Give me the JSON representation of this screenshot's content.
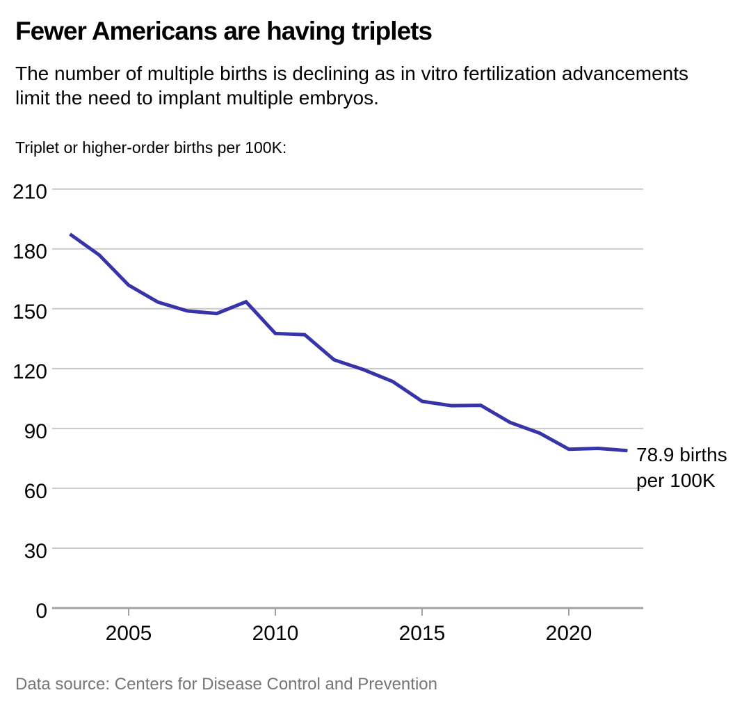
{
  "header": {
    "title": "Fewer Americans are having triplets",
    "subtitle": "The number of multiple births is declining as in vitro fertilization advancements limit the need to implant multiple embryos.",
    "axis_note": "Triplet or higher-order births per 100K:"
  },
  "chart_data": {
    "type": "line",
    "title": "Fewer Americans are having triplets",
    "ylabel": "Triplet or higher-order births per 100K",
    "xlabel": "",
    "x": [
      2003,
      2004,
      2005,
      2006,
      2007,
      2008,
      2009,
      2010,
      2011,
      2012,
      2013,
      2014,
      2015,
      2016,
      2017,
      2018,
      2019,
      2020,
      2021,
      2022
    ],
    "series": [
      {
        "name": "Triplet or higher-order births per 100K",
        "values": [
          187.4,
          176.9,
          161.8,
          153.3,
          148.9,
          147.6,
          153.5,
          137.6,
          137.0,
          124.4,
          119.5,
          113.5,
          103.6,
          101.4,
          101.6,
          93.0,
          87.7,
          79.6,
          80.0,
          78.9
        ]
      }
    ],
    "ylim": [
      0,
      210
    ],
    "yticks": [
      0,
      30,
      60,
      90,
      120,
      150,
      180,
      210
    ],
    "xticks": [
      2005,
      2010,
      2015,
      2020
    ],
    "grid": true,
    "legend": "none",
    "line_color": "#3733a8",
    "grid_color": "#c9c9c9",
    "axis_color": "#a3a3a3",
    "annotation": {
      "lines": [
        "78.9 births",
        "per 100K"
      ]
    }
  },
  "footer": {
    "source": "Data source: Centers for Disease Control and Prevention"
  }
}
